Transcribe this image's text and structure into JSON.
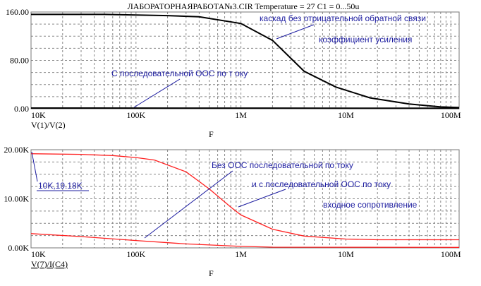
{
  "title": "ЛАБОРАТОРНАЯРАБОТА№3.CIR Temperature = 27 C1 = 0...50u",
  "chart_data": [
    {
      "type": "line",
      "xscale": "log",
      "xlim": [
        10000,
        120000000
      ],
      "ylim": [
        0,
        160
      ],
      "xticks": [
        10000,
        100000,
        1000000,
        10000000,
        100000000
      ],
      "xtick_labels": [
        "10K",
        "100K",
        "1M",
        "10M",
        "100M"
      ],
      "yticks": [
        0,
        80,
        160
      ],
      "ytick_labels": [
        "0.00",
        "80.00",
        "160.00"
      ],
      "ygrid_step": 20,
      "ylabel": "V(1)/V(2)",
      "xlabel": "F",
      "grid": true,
      "color": "#000000",
      "series": [
        {
          "name": "каскад без отрицательной обратной связи",
          "x": [
            10000,
            50000,
            100000,
            200000,
            400000,
            1000000,
            2000000,
            4000000,
            8000000,
            17000000,
            40000000,
            80000000,
            120000000
          ],
          "y": [
            156,
            156,
            155,
            154,
            152,
            141,
            113,
            62,
            36,
            18,
            8,
            3,
            2
          ]
        },
        {
          "name": "С последовательной ООС по току",
          "x": [
            10000,
            1000000,
            120000000
          ],
          "y": [
            1.2,
            1,
            0.8
          ]
        }
      ],
      "annotations": [
        "каскад без отрицательной обратной связи",
        "коэффициент усиления",
        "С последовательной ООС по т оку"
      ]
    },
    {
      "type": "line",
      "xscale": "log",
      "xlim": [
        10000,
        120000000
      ],
      "ylim": [
        0,
        20000
      ],
      "xticks": [
        10000,
        100000,
        1000000,
        10000000,
        100000000
      ],
      "xtick_labels": [
        "10K",
        "100K",
        "1M",
        "10M",
        "100M"
      ],
      "yticks": [
        0,
        10000,
        20000
      ],
      "ytick_labels": [
        "0.00K",
        "10.00K",
        "20.00K"
      ],
      "ygrid_step": 2500,
      "ylabel": "V(7)/I(C4)",
      "xlabel": "F",
      "grid": true,
      "color": "#ff2020",
      "series": [
        {
          "name": "Без ООС",
          "x": [
            10000,
            30000,
            60000,
            100000,
            150000,
            300000,
            500000,
            800000,
            1000000,
            2000000,
            4000000,
            10000000,
            20000000,
            120000000
          ],
          "y": [
            19180,
            19050,
            18800,
            18400,
            17900,
            15500,
            12000,
            8300,
            6700,
            3800,
            2400,
            1800,
            1650,
            1650
          ]
        },
        {
          "name": "с последовательной ООС по току",
          "x": [
            10000,
            30000,
            100000,
            300000,
            1000000,
            2000000,
            120000000
          ],
          "y": [
            2900,
            2300,
            1500,
            800,
            300,
            150,
            100
          ]
        }
      ],
      "annotations": [
        "Без ООС последовательной по току",
        "и с последовательной ООС по току",
        "входное сопротивление"
      ],
      "marker_label": "10K,19.18K"
    }
  ]
}
